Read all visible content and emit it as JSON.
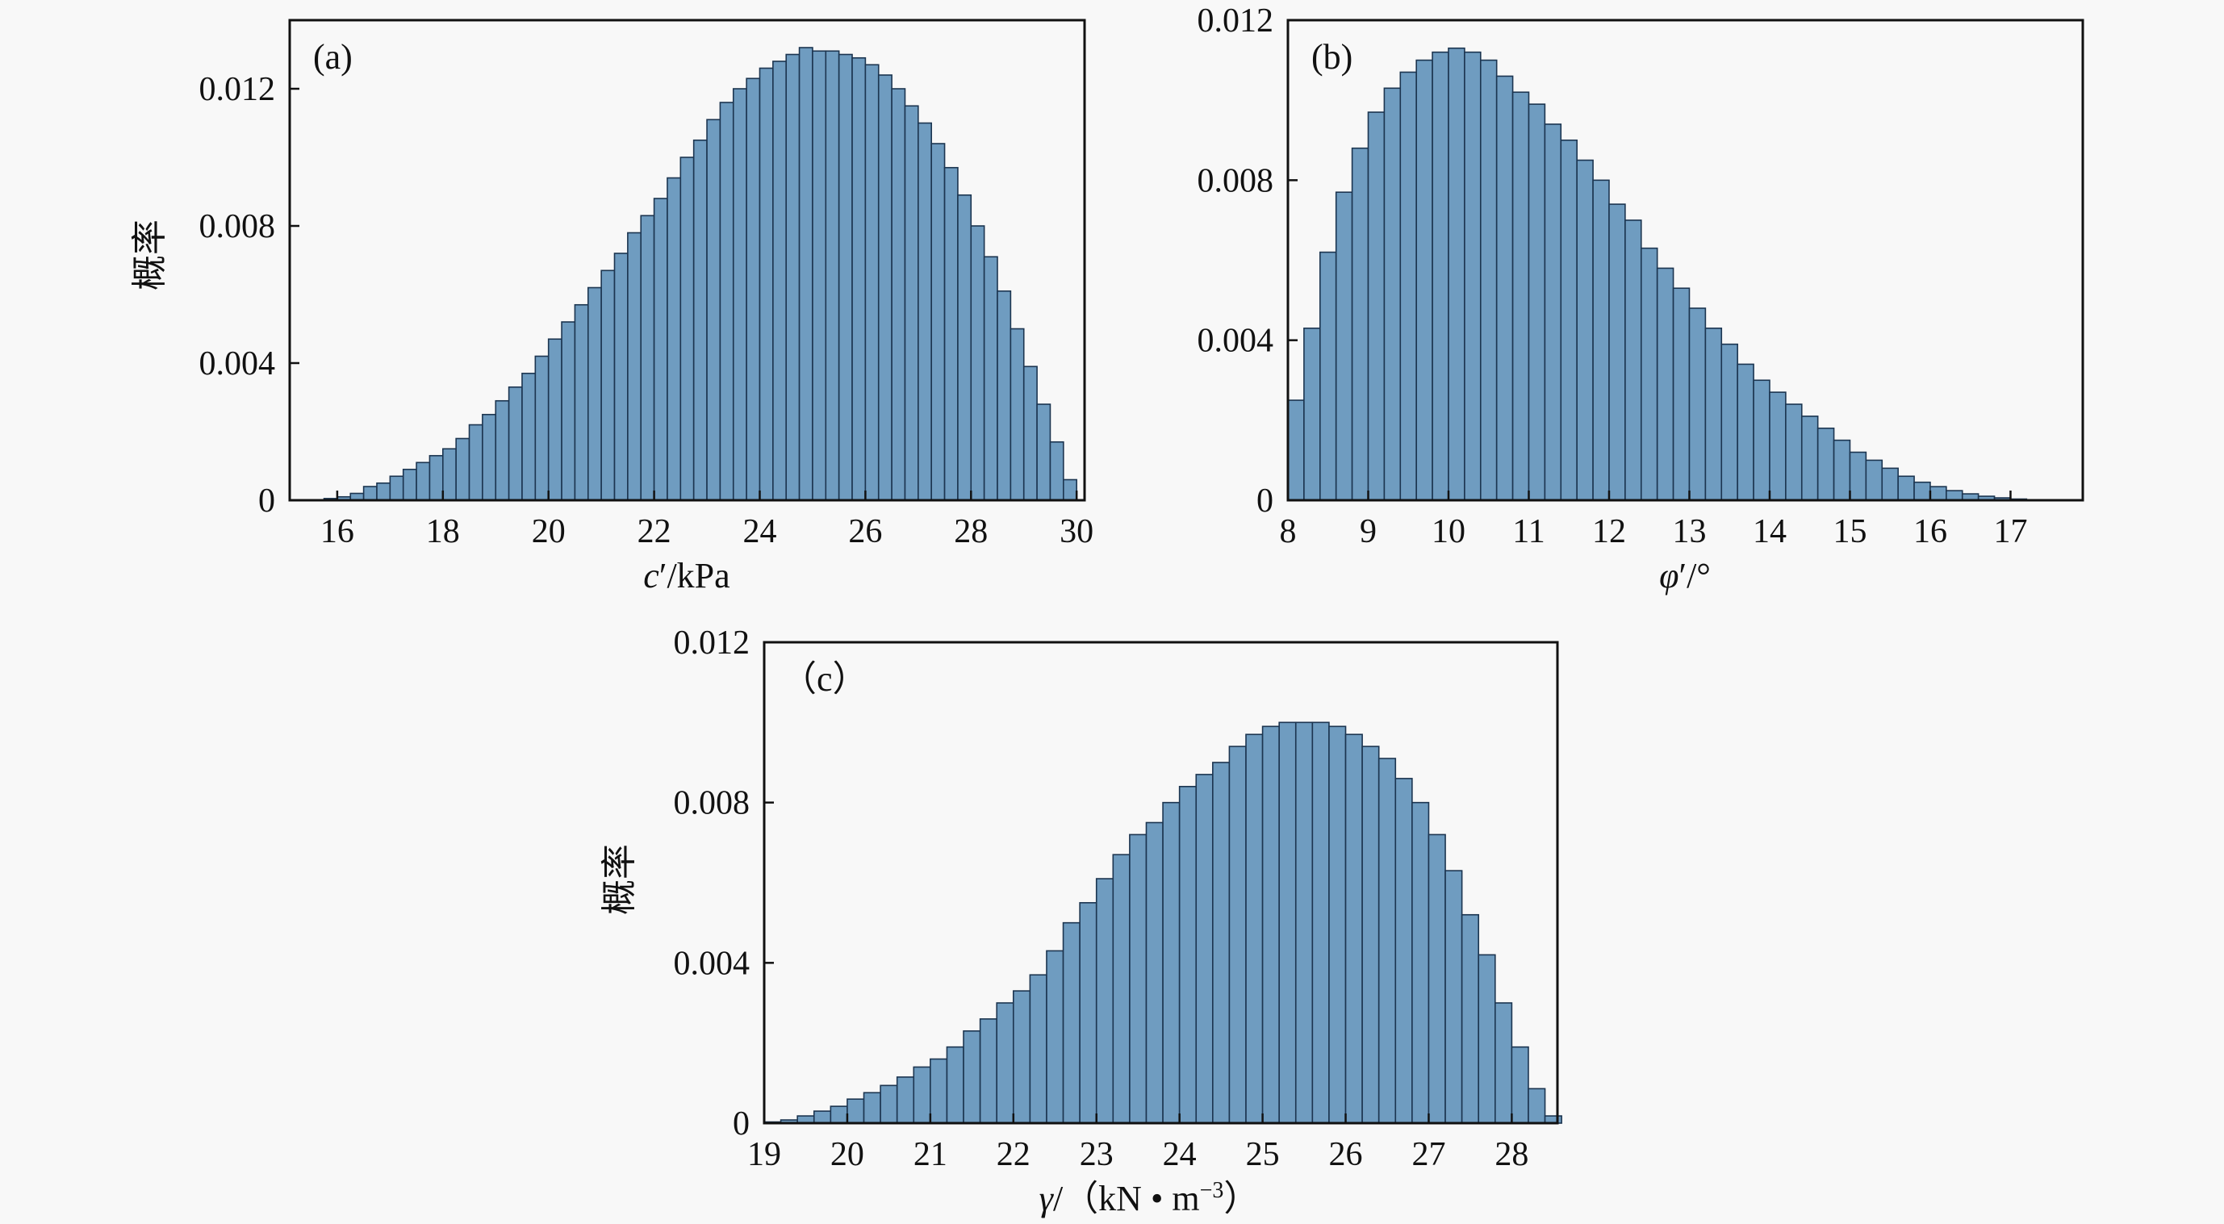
{
  "colors": {
    "bar_fill": "#6f9cc0",
    "bar_edge": "#1c3550",
    "background": "#f8f8f8"
  },
  "chart_data": [
    {
      "type": "bar",
      "panel_label": "(a)",
      "xlabel_italic": "c",
      "xlabel_rest": "′/kPa",
      "ylabel": "概率",
      "xlim": [
        15.1,
        30.15
      ],
      "ylim": [
        0,
        0.014
      ],
      "xticks": [
        16,
        18,
        20,
        22,
        24,
        26,
        28,
        30
      ],
      "yticks": [
        0,
        0.004,
        0.008,
        0.012
      ],
      "ytick_labels": [
        "0",
        "0.004",
        "0.008",
        "0.012"
      ],
      "grid": false,
      "bin_start": 15.75,
      "bin_width": 0.25,
      "values": [
        5e-05,
        0.0001,
        0.0002,
        0.0004,
        0.0005,
        0.0007,
        0.0009,
        0.0011,
        0.0013,
        0.0015,
        0.0018,
        0.0022,
        0.0025,
        0.0029,
        0.0033,
        0.0037,
        0.0042,
        0.0047,
        0.0052,
        0.0057,
        0.0062,
        0.0067,
        0.0072,
        0.0078,
        0.0083,
        0.0088,
        0.0094,
        0.01,
        0.0105,
        0.0111,
        0.0116,
        0.012,
        0.0123,
        0.0126,
        0.0128,
        0.013,
        0.0132,
        0.0131,
        0.0131,
        0.013,
        0.0129,
        0.0127,
        0.0124,
        0.012,
        0.0115,
        0.011,
        0.0104,
        0.0097,
        0.0089,
        0.008,
        0.0071,
        0.0061,
        0.005,
        0.0039,
        0.0028,
        0.0017,
        0.0006
      ]
    },
    {
      "type": "bar",
      "panel_label": "(b)",
      "xlabel_italic": "φ",
      "xlabel_rest": "′/°",
      "ylabel": "",
      "xlim": [
        8,
        17.9
      ],
      "ylim": [
        0,
        0.012
      ],
      "xticks": [
        8,
        9,
        10,
        11,
        12,
        13,
        14,
        15,
        16,
        17
      ],
      "yticks": [
        0,
        0.004,
        0.008,
        0.012
      ],
      "ytick_labels": [
        "0",
        "0.004",
        "0.008",
        "0.012"
      ],
      "grid": false,
      "bin_start": 8.0,
      "bin_width": 0.2,
      "values": [
        0.0025,
        0.0043,
        0.0062,
        0.0077,
        0.0088,
        0.0097,
        0.0103,
        0.0107,
        0.011,
        0.0112,
        0.0113,
        0.0112,
        0.011,
        0.0106,
        0.0102,
        0.0099,
        0.0094,
        0.009,
        0.0085,
        0.008,
        0.0074,
        0.007,
        0.0063,
        0.0058,
        0.0053,
        0.0048,
        0.0043,
        0.0039,
        0.0034,
        0.003,
        0.0027,
        0.0024,
        0.0021,
        0.0018,
        0.0015,
        0.0012,
        0.001,
        0.0008,
        0.0006,
        0.00045,
        0.00034,
        0.00024,
        0.00016,
        0.0001,
        6e-05,
        3e-05
      ]
    },
    {
      "type": "bar",
      "panel_label": "（c）",
      "xlabel_italic": "γ",
      "xlabel_rest": "/（kN • m",
      "xlabel_sup": "−3",
      "xlabel_end": "）",
      "ylabel": "概率",
      "xlim": [
        19,
        28.55
      ],
      "ylim": [
        0,
        0.012
      ],
      "xticks": [
        19,
        20,
        21,
        22,
        23,
        24,
        25,
        26,
        27,
        28
      ],
      "yticks": [
        0,
        0.004,
        0.008,
        0.012
      ],
      "ytick_labels": [
        "0",
        "0.004",
        "0.008",
        "0.012"
      ],
      "grid": false,
      "bin_start": 19.0,
      "bin_width": 0.2,
      "values": [
        3e-05,
        8e-05,
        0.00018,
        0.0003,
        0.00042,
        0.0006,
        0.00076,
        0.00094,
        0.00115,
        0.0014,
        0.0016,
        0.0019,
        0.0023,
        0.0026,
        0.003,
        0.0033,
        0.0037,
        0.0043,
        0.005,
        0.0055,
        0.0061,
        0.0067,
        0.0072,
        0.0075,
        0.008,
        0.0084,
        0.0087,
        0.009,
        0.0094,
        0.0097,
        0.0099,
        0.01,
        0.01,
        0.01,
        0.0099,
        0.0097,
        0.0094,
        0.0091,
        0.0086,
        0.008,
        0.0072,
        0.0063,
        0.0052,
        0.0042,
        0.003,
        0.0019,
        0.00086,
        0.00018
      ]
    }
  ]
}
